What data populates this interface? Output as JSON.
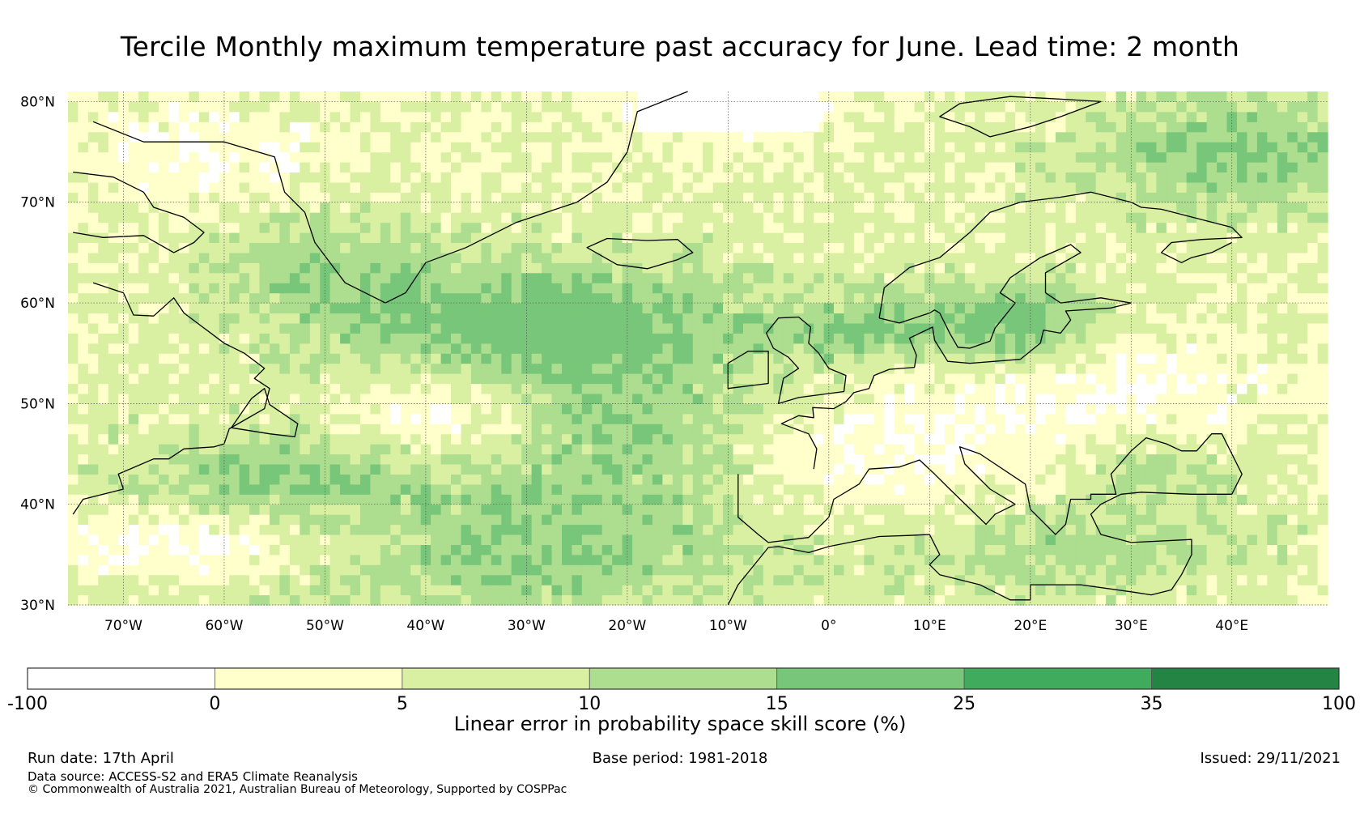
{
  "title": "Tercile Monthly maximum temperature past accuracy for June. Lead time: 2 month",
  "map": {
    "lat_labels": [
      "80°N",
      "70°N",
      "60°N",
      "50°N",
      "40°N",
      "30°N"
    ],
    "lon_labels": [
      "70°W",
      "60°W",
      "50°W",
      "40°W",
      "30°W",
      "20°W",
      "10°W",
      "0°",
      "10°E",
      "20°E",
      "30°E",
      "40°E"
    ],
    "lat_range": [
      30,
      81
    ],
    "lon_range": [
      -75.5,
      49.5
    ],
    "palette": {
      "neg": "#ffffff",
      "c0_5": "#ffffcc",
      "c5_10": "#d9f0a3",
      "c10_15": "#addd8e",
      "c15_25": "#78c679",
      "c25_35": "#41ab5d",
      "c35_100": "#238443"
    },
    "coastline_color": "#000000"
  },
  "colorbar": {
    "title": "Linear error in probability space skill score (%)",
    "tick_labels": [
      "-100",
      "0",
      "5",
      "10",
      "15",
      "25",
      "35",
      "100"
    ],
    "colors": [
      "#ffffff",
      "#ffffcc",
      "#d9f0a3",
      "#addd8e",
      "#78c679",
      "#41ab5d",
      "#238443"
    ]
  },
  "footer": {
    "run_date": "Run date: 17th April",
    "base_period": "Base period: 1981-2018",
    "issued": "Issued: 29/11/2021",
    "data_source": "Data source: ACCESS-S2 and ERA5 Climate Reanalysis",
    "copyright": "© Commonwealth of Australia 2021, Australian Bureau of Meteorology, Supported by COSPPac"
  }
}
